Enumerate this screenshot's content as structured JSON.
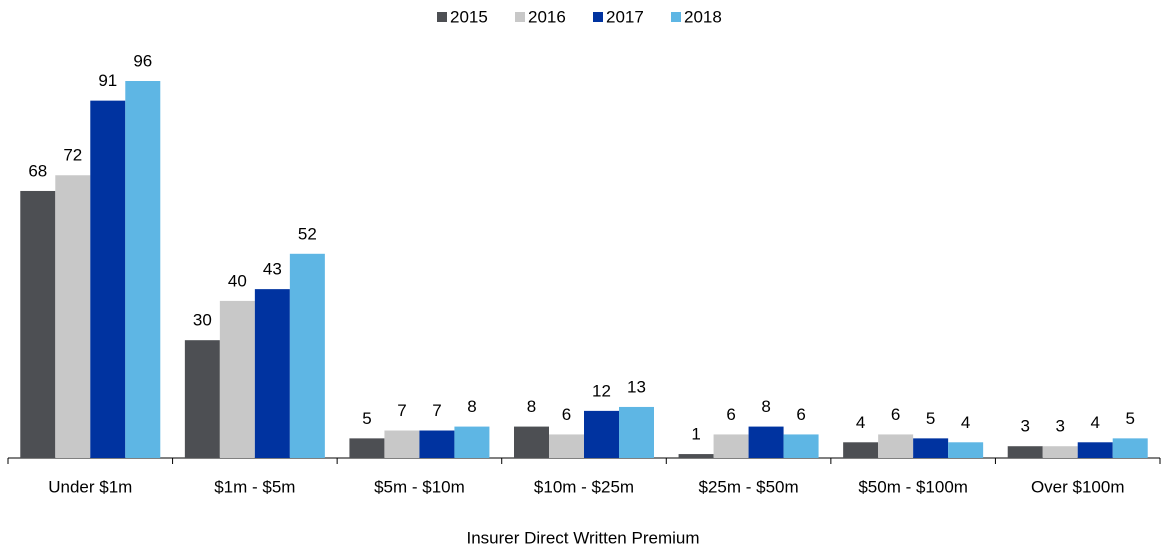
{
  "chart_data": {
    "type": "bar",
    "x_label": "Insurer Direct Written Premium",
    "categories": [
      "Under $1m",
      "$1m - $5m",
      "$5m - $10m",
      "$10m - $25m",
      "$25m - $50m",
      "$50m - $100m",
      "Over $100m"
    ],
    "series": [
      {
        "name": "2015",
        "color": "#4d4f53",
        "values": [
          68,
          30,
          5,
          8,
          1,
          4,
          3
        ]
      },
      {
        "name": "2016",
        "color": "#c8c8c8",
        "values": [
          72,
          40,
          7,
          6,
          6,
          6,
          3
        ]
      },
      {
        "name": "2017",
        "color": "#0033a0",
        "values": [
          91,
          43,
          7,
          12,
          8,
          5,
          4
        ]
      },
      {
        "name": "2018",
        "color": "#5eb6e4",
        "values": [
          96,
          52,
          8,
          13,
          6,
          4,
          5
        ]
      }
    ],
    "legend": "top"
  }
}
